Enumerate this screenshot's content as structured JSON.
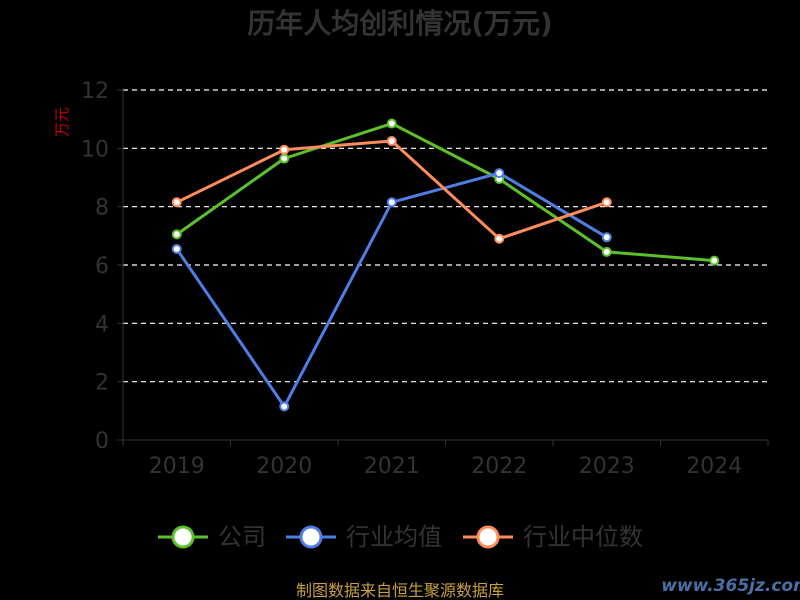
{
  "chart_data": {
    "type": "line",
    "title": "历年人均创利情况(万元)",
    "ylabel": "万元",
    "categories": [
      "2019",
      "2020",
      "2021",
      "2022",
      "2023",
      "2024"
    ],
    "ylim": [
      0,
      12
    ],
    "yticks": [
      0,
      2,
      4,
      6,
      8,
      10,
      12
    ],
    "grid": true,
    "legend_position": "bottom",
    "series": [
      {
        "name": "公司",
        "color": "#5cc12a",
        "values": [
          7.05,
          9.65,
          10.85,
          8.95,
          6.45,
          6.15
        ]
      },
      {
        "name": "行业均值",
        "color": "#4f7ee6",
        "values": [
          6.55,
          1.15,
          8.15,
          9.15,
          6.95,
          null
        ]
      },
      {
        "name": "行业中位数",
        "color": "#ff8c5a",
        "values": [
          8.15,
          9.95,
          10.25,
          6.9,
          8.15,
          null
        ]
      }
    ]
  },
  "footer": {
    "source": "制图数据来自恒生聚源数据库",
    "watermark": "www.365jz.com"
  }
}
